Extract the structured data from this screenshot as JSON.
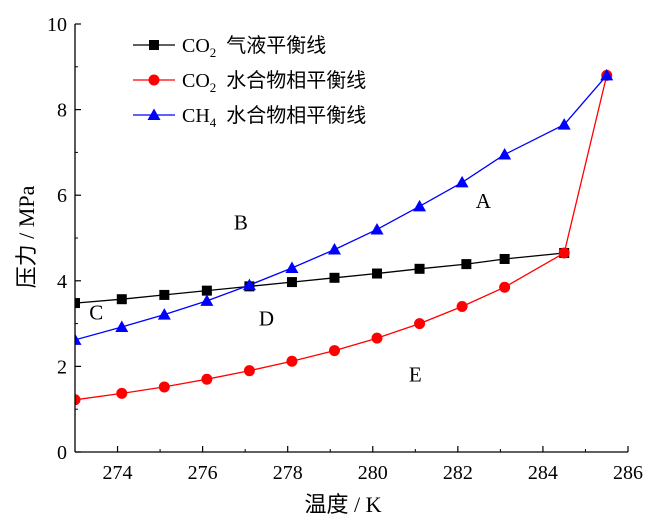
{
  "chart_data": {
    "type": "line",
    "xlabel": "温度 / K",
    "ylabel": "压力 / MPa",
    "xlim": [
      273,
      286
    ],
    "ylim": [
      0,
      10
    ],
    "xticks": [
      "274",
      "276",
      "278",
      "280",
      "282",
      "284",
      "286"
    ],
    "yticks": [
      "0",
      "2",
      "4",
      "6",
      "8",
      "10"
    ],
    "grid": false,
    "legend_position": "top-left",
    "series": [
      {
        "name": "CO2 气液平衡线",
        "legend_main": "CO",
        "legend_sub": "2",
        "legend_tail": "气液平衡线",
        "color": "#000000",
        "marker": "square",
        "x": [
          273.0,
          274.1,
          275.1,
          276.1,
          277.1,
          278.1,
          279.1,
          280.1,
          281.1,
          282.2,
          283.1,
          284.5
        ],
        "y": [
          3.48,
          3.57,
          3.67,
          3.77,
          3.87,
          3.97,
          4.07,
          4.17,
          4.28,
          4.39,
          4.51,
          4.65
        ]
      },
      {
        "name": "CO2 水合物相平衡线",
        "legend_main": "CO",
        "legend_sub": "2",
        "legend_tail": "水合物相平衡线",
        "color": "#ff0000",
        "marker": "circle",
        "x": [
          273.0,
          274.1,
          275.1,
          276.1,
          277.1,
          278.1,
          279.1,
          280.1,
          281.1,
          282.1,
          283.1,
          284.5,
          285.5
        ],
        "y": [
          1.22,
          1.37,
          1.52,
          1.7,
          1.9,
          2.12,
          2.37,
          2.66,
          3.0,
          3.4,
          3.85,
          4.65,
          8.8
        ]
      },
      {
        "name": "CH4 水合物相平衡线",
        "legend_main": "CH",
        "legend_sub": "4",
        "legend_tail": "水合物相平衡线",
        "color": "#0000ff",
        "marker": "triangle",
        "x": [
          273.0,
          274.1,
          275.1,
          276.1,
          277.1,
          278.1,
          279.1,
          280.1,
          281.1,
          282.1,
          283.1,
          284.5,
          285.5
        ],
        "y": [
          2.62,
          2.92,
          3.21,
          3.53,
          3.9,
          4.3,
          4.73,
          5.2,
          5.74,
          6.3,
          6.95,
          7.65,
          8.8
        ]
      }
    ],
    "annotations": [
      {
        "text": "A",
        "x": 282.6,
        "y": 5.7
      },
      {
        "text": "B",
        "x": 276.9,
        "y": 5.2
      },
      {
        "text": "C",
        "x": 273.5,
        "y": 3.1
      },
      {
        "text": "D",
        "x": 277.5,
        "y": 2.95
      },
      {
        "text": "E",
        "x": 281.0,
        "y": 1.65
      }
    ]
  }
}
